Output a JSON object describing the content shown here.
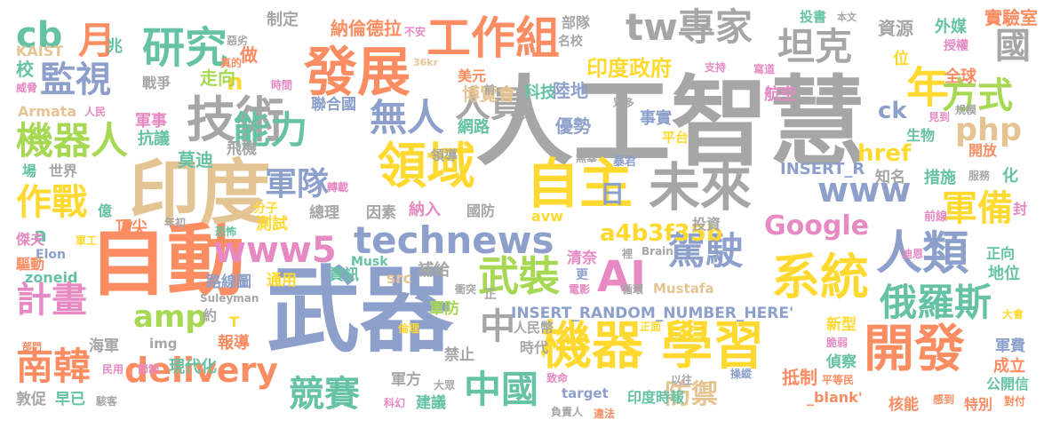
{
  "words": [
    {
      "text": "人工智慧",
      "color": "#a6a6a6"
    },
    {
      "text": "武器",
      "color": "#8da0cb"
    },
    {
      "text": "自動",
      "color": "#fc8d62"
    },
    {
      "text": "印度",
      "color": "#e5c494"
    },
    {
      "text": "機器 學習",
      "color": "#ffd92f"
    },
    {
      "text": "發展",
      "color": "#fc8d62"
    },
    {
      "text": "開發",
      "color": "#fc8d62"
    },
    {
      "text": "未來",
      "color": "#a6a6a6"
    },
    {
      "text": "技術",
      "color": "#a6a6a6"
    },
    {
      "text": "自主",
      "color": "#ffd92f"
    },
    {
      "text": "領域",
      "color": "#ffd92f"
    },
    {
      "text": "系統",
      "color": "#ffd92f"
    },
    {
      "text": "研究",
      "color": "#66c2a5"
    },
    {
      "text": "工作組",
      "color": "#fc8d62"
    },
    {
      "text": "人類",
      "color": "#8da0cb"
    },
    {
      "text": "technews",
      "color": "#8da0cb"
    },
    {
      "text": "www5",
      "color": "#e78ac3"
    },
    {
      "text": "AI",
      "color": "#e78ac3"
    },
    {
      "text": "delivery",
      "color": "#fc8d62"
    },
    {
      "text": "機器人",
      "color": "#a6d854"
    },
    {
      "text": "監視",
      "color": "#8da0cb"
    },
    {
      "text": "能力",
      "color": "#66c2a5"
    },
    {
      "text": "無人",
      "color": "#8da0cb"
    },
    {
      "text": "人員",
      "color": "#a6a6a6"
    },
    {
      "text": "tw專家",
      "color": "#a6a6a6"
    },
    {
      "text": "坦克",
      "color": "#a6a6a6"
    },
    {
      "text": "國",
      "color": "#a6a6a6"
    },
    {
      "text": "年",
      "color": "#ffd92f"
    },
    {
      "text": "方式",
      "color": "#a6d854"
    },
    {
      "text": "php",
      "color": "#e5c494"
    },
    {
      "text": "cb",
      "color": "#66c2a5"
    },
    {
      "text": "月",
      "color": "#fc8d62"
    },
    {
      "text": "作戰",
      "color": "#ffd92f"
    },
    {
      "text": "軍隊",
      "color": "#8da0cb"
    },
    {
      "text": "www",
      "color": "#8da0cb"
    },
    {
      "text": "軍備",
      "color": "#ffd92f"
    },
    {
      "text": "Google",
      "color": "#e78ac3"
    },
    {
      "text": "駕駛",
      "color": "#8da0cb"
    },
    {
      "text": "武裝",
      "color": "#a6d854"
    },
    {
      "text": "俄羅斯",
      "color": "#66c2a5"
    },
    {
      "text": "計畫",
      "color": "#e78ac3"
    },
    {
      "text": "amp",
      "color": "#a6d854"
    },
    {
      "text": "南韓",
      "color": "#fc8d62"
    },
    {
      "text": "競賽",
      "color": "#66c2a5"
    },
    {
      "text": "中國",
      "color": "#66c2a5"
    },
    {
      "text": "中",
      "color": "#a6a6a6"
    },
    {
      "text": "a4b3f35b",
      "color": "#ffd92f"
    },
    {
      "text": "印度政府",
      "color": "#ffd92f"
    },
    {
      "text": "防禦",
      "color": "#e5c494"
    },
    {
      "text": "INSERT_RANDOM_NUMBER_HERE'",
      "color": "#8da0cb"
    },
    {
      "text": "href",
      "color": "#ffd92f"
    },
    {
      "text": "ck",
      "color": "#8da0cb"
    },
    {
      "text": "INSERT_R",
      "color": "#8da0cb"
    },
    {
      "text": "日",
      "color": "#8da0cb"
    },
    {
      "text": "a",
      "color": "#66c2a5"
    },
    {
      "text": "n",
      "color": "#ffd92f"
    },
    {
      "text": "納倫德拉",
      "color": "#fc8d62"
    },
    {
      "text": "制定",
      "color": "#a6a6a6"
    },
    {
      "text": "部隊",
      "color": "#a6a6a6"
    },
    {
      "text": "名校",
      "color": "#a6a6a6"
    },
    {
      "text": "資源",
      "color": "#a6a6a6"
    },
    {
      "text": "外媒",
      "color": "#66c2a5"
    },
    {
      "text": "實驗室",
      "color": "#fc8d62"
    },
    {
      "text": "投書",
      "color": "#66c2a5"
    },
    {
      "text": "本文",
      "color": "#a6a6a6"
    },
    {
      "text": "全球",
      "color": "#fc8d62"
    },
    {
      "text": "位",
      "color": "#ffd92f"
    },
    {
      "text": "授權",
      "color": "#e78ac3"
    },
    {
      "text": "KAIST",
      "color": "#e5c494"
    },
    {
      "text": "校",
      "color": "#66c2a5"
    },
    {
      "text": "兆",
      "color": "#66c2a5"
    },
    {
      "text": "威脅",
      "color": "#e78ac3"
    },
    {
      "text": "戰爭",
      "color": "#a6a6a6"
    },
    {
      "text": "走向",
      "color": "#a6d854"
    },
    {
      "text": "做",
      "color": "#fc8d62"
    },
    {
      "text": "美元",
      "color": "#fc8d62"
    },
    {
      "text": "博覽會",
      "color": "#e5c494"
    },
    {
      "text": "科技",
      "color": "#66c2a5"
    },
    {
      "text": "航空",
      "color": "#e78ac3"
    },
    {
      "text": "支持",
      "color": "#e78ac3"
    },
    {
      "text": "寫道",
      "color": "#e78ac3"
    },
    {
      "text": "見到",
      "color": "#e78ac3"
    },
    {
      "text": "規模",
      "color": "#a6a6a6"
    },
    {
      "text": "Armata",
      "color": "#e5c494"
    },
    {
      "text": "人民",
      "color": "#e78ac3"
    },
    {
      "text": "軍事",
      "color": "#e78ac3"
    },
    {
      "text": "抗議",
      "color": "#66c2a5"
    },
    {
      "text": "聯合國",
      "color": "#8da0cb"
    },
    {
      "text": "陸地",
      "color": "#8da0cb"
    },
    {
      "text": "優勢",
      "color": "#8da0cb"
    },
    {
      "text": "網路",
      "color": "#66c2a5"
    },
    {
      "text": "事實",
      "color": "#8da0cb"
    },
    {
      "text": "平台",
      "color": "#ffd92f"
    },
    {
      "text": "生物",
      "color": "#66c2a5"
    },
    {
      "text": "開放",
      "color": "#fc8d62"
    },
    {
      "text": "服務",
      "color": "#a6a6a6"
    },
    {
      "text": "化",
      "color": "#66c2a5"
    },
    {
      "text": "措施",
      "color": "#66c2a5"
    },
    {
      "text": "知名",
      "color": "#a6a6a6"
    },
    {
      "text": "世界",
      "color": "#a6a6a6"
    },
    {
      "text": "場",
      "color": "#66c2a5"
    },
    {
      "text": "莫迪",
      "color": "#66c2a5"
    },
    {
      "text": "飛機",
      "color": "#a6a6a6"
    },
    {
      "text": "轉載",
      "color": "#e78ac3"
    },
    {
      "text": "領導",
      "color": "#a6a6a6"
    },
    {
      "text": "無辜",
      "color": "#a6a6a6"
    },
    {
      "text": "暴君",
      "color": "#8da0cb"
    },
    {
      "text": "億",
      "color": "#66c2a5"
    },
    {
      "text": "分子",
      "color": "#ffd92f"
    },
    {
      "text": "總理",
      "color": "#a6a6a6"
    },
    {
      "text": "因素",
      "color": "#a6a6a6"
    },
    {
      "text": "納入",
      "color": "#e78ac3"
    },
    {
      "text": "國防",
      "color": "#a6a6a6"
    },
    {
      "text": "avw",
      "color": "#ffd92f"
    },
    {
      "text": "測試",
      "color": "#ffd92f"
    },
    {
      "text": "頂尖",
      "color": "#fc8d62"
    },
    {
      "text": "年初",
      "color": "#a6a6a6"
    },
    {
      "text": "恐怖",
      "color": "#66c2a5"
    },
    {
      "text": "投資",
      "color": "#a6a6a6"
    },
    {
      "text": "前線",
      "color": "#e78ac3"
    },
    {
      "text": "封",
      "color": "#e78ac3"
    },
    {
      "text": "傑夫",
      "color": "#e78ac3"
    },
    {
      "text": "軍工",
      "color": "#ffd92f"
    },
    {
      "text": "Elon",
      "color": "#8da0cb"
    },
    {
      "text": "驅動",
      "color": "#fc8d62"
    },
    {
      "text": "Musk",
      "color": "#66c2a5"
    },
    {
      "text": "補給",
      "color": "#a6a6a6"
    },
    {
      "text": "清奈",
      "color": "#e78ac3"
    },
    {
      "text": "更",
      "color": "#8da0cb"
    },
    {
      "text": "Brain",
      "color": "#a6a6a6"
    },
    {
      "text": "迪恩",
      "color": "#e78ac3"
    },
    {
      "text": "名",
      "color": "#8da0cb"
    },
    {
      "text": "正向",
      "color": "#66c2a5"
    },
    {
      "text": "地位",
      "color": "#66c2a5"
    },
    {
      "text": "zoneid",
      "color": "#66c2a5"
    },
    {
      "text": "路線圖",
      "color": "#8da0cb"
    },
    {
      "text": "通用",
      "color": "#ffd92f"
    },
    {
      "text": "資訊",
      "color": "#66c2a5"
    },
    {
      "text": "src",
      "color": "#e5c494"
    },
    {
      "text": "衝突",
      "color": "#a6a6a6"
    },
    {
      "text": "電影",
      "color": "#e78ac3"
    },
    {
      "text": "循環",
      "color": "#a6a6a6"
    },
    {
      "text": "Mustafa",
      "color": "#e5c494"
    },
    {
      "text": "Suleyman",
      "color": "#a6a6a6"
    },
    {
      "text": "約",
      "color": "#a6a6a6"
    },
    {
      "text": "軍防",
      "color": "#a6d854"
    },
    {
      "text": "人民幣",
      "color": "#a6a6a6"
    },
    {
      "text": "新型",
      "color": "#ffd92f"
    },
    {
      "text": "大會",
      "color": "#ffd92f"
    },
    {
      "text": "部門",
      "color": "#fc8d62"
    },
    {
      "text": "海軍",
      "color": "#a6a6a6"
    },
    {
      "text": "img",
      "color": "#a6a6a6"
    },
    {
      "text": "報導",
      "color": "#fc8d62"
    },
    {
      "text": "倫理",
      "color": "#ffd92f"
    },
    {
      "text": "正面",
      "color": "#ffd92f"
    },
    {
      "text": "脆弱",
      "color": "#e78ac3"
    },
    {
      "text": "時代",
      "color": "#a6a6a6"
    },
    {
      "text": "禁止",
      "color": "#a6a6a6"
    },
    {
      "text": "偵察",
      "color": "#66c2a5"
    },
    {
      "text": "軍費",
      "color": "#8da0cb"
    },
    {
      "text": "成立",
      "color": "#fc8d62"
    },
    {
      "text": "公開信",
      "color": "#66c2a5"
    },
    {
      "text": "現代化",
      "color": "#66c2a5"
    },
    {
      "text": "民用",
      "color": "#e78ac3"
    },
    {
      "text": "節制",
      "color": "#e78ac3"
    },
    {
      "text": "軍方",
      "color": "#a6a6a6"
    },
    {
      "text": "大眾",
      "color": "#a6a6a6"
    },
    {
      "text": "致命",
      "color": "#e78ac3"
    },
    {
      "text": "target",
      "color": "#8da0cb"
    },
    {
      "text": "以往",
      "color": "#a6a6a6"
    },
    {
      "text": "操縱",
      "color": "#8da0cb"
    },
    {
      "text": "抵制",
      "color": "#fc8d62"
    },
    {
      "text": "平等民",
      "color": "#fc8d62"
    },
    {
      "text": "_blank'",
      "color": "#fc8d62"
    },
    {
      "text": "印度時報",
      "color": "#66c2a5"
    },
    {
      "text": "感到",
      "color": "#fc8d62"
    },
    {
      "text": "核能",
      "color": "#fc8d62"
    },
    {
      "text": "特別",
      "color": "#fc8d62"
    },
    {
      "text": "對付",
      "color": "#fc8d62"
    },
    {
      "text": "敦促",
      "color": "#a6a6a6"
    },
    {
      "text": "早已",
      "color": "#66c2a5"
    },
    {
      "text": "駭客",
      "color": "#a6a6a6"
    },
    {
      "text": "建議",
      "color": "#66c2a5"
    },
    {
      "text": "科幻",
      "color": "#e78ac3"
    },
    {
      "text": "負責人",
      "color": "#a6a6a6"
    },
    {
      "text": "違法",
      "color": "#fc8d62"
    },
    {
      "text": "36kr",
      "color": "#e5c494"
    },
    {
      "text": "前",
      "color": "#a6a6a6"
    },
    {
      "text": "眾多",
      "color": "#a6a6a6"
    },
    {
      "text": "惡劣",
      "color": "#a6a6a6"
    },
    {
      "text": "真的",
      "color": "#fc8d62"
    },
    {
      "text": "時間",
      "color": "#e78ac3"
    },
    {
      "text": "不安",
      "color": "#e78ac3"
    },
    {
      "text": "T",
      "color": "#ffd92f"
    },
    {
      "text": "正",
      "color": "#a6a6a6"
    },
    {
      "text": "裡",
      "color": "#a6a6a6"
    }
  ]
}
